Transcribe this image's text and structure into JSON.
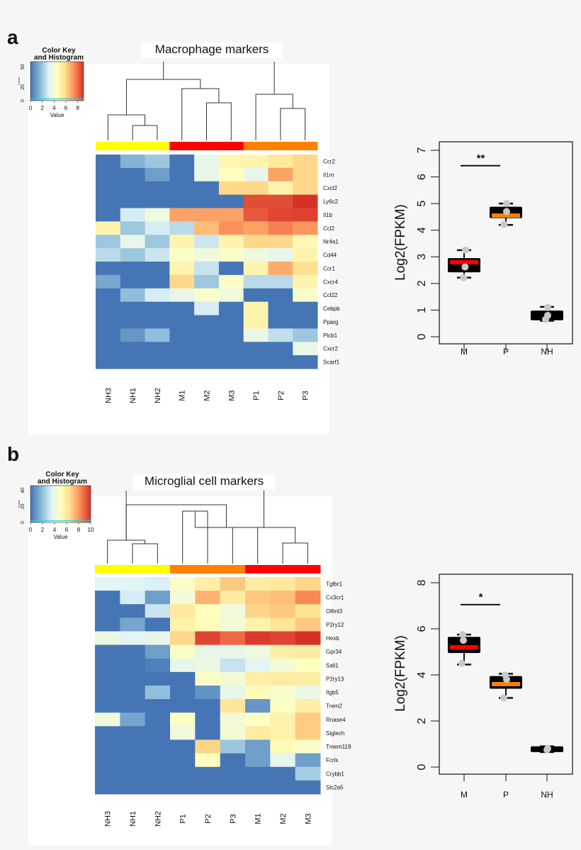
{
  "panels": [
    {
      "label": "a",
      "color_key_title_1": "Color Key",
      "color_key_title_2": "and Histogram",
      "color_key_ylabel": "Count",
      "color_key_xlabel": "Value",
      "color_key_xticks": [
        "0",
        "2",
        "4",
        "6",
        "8"
      ],
      "color_key_yticks": [
        "0",
        "20",
        "50"
      ]
    },
    {
      "label": "b",
      "color_key_title_1": "Color Key",
      "color_key_title_2": "and Histogram",
      "color_key_ylabel": "Count",
      "color_key_xlabel": "Value",
      "color_key_xticks": [
        "0",
        "2",
        "4",
        "6",
        "8",
        "10"
      ],
      "color_key_yticks": [
        "0",
        "20",
        "40"
      ]
    }
  ],
  "colors": {
    "NH": "#ffff00",
    "M": "#ff0000",
    "P": "#ff8000",
    "scale": [
      "#4575b4",
      "#91bfdb",
      "#e0f3f8",
      "#ffffbf",
      "#fee090",
      "#fc8d59",
      "#d73027"
    ]
  },
  "chart_data": [
    {
      "type": "heatmap",
      "title": "Macrophage markers",
      "value_range": [
        0,
        9
      ],
      "columns": [
        "NH3",
        "NH1",
        "NH2",
        "M1",
        "M2",
        "M3",
        "P1",
        "P2",
        "P3"
      ],
      "column_groups": [
        "NH",
        "NH",
        "NH",
        "M",
        "M",
        "M",
        "P",
        "P",
        "P"
      ],
      "rows": [
        "Ccr2",
        "Il1rn",
        "Cxcl2",
        "Ly6c2",
        "Il1b",
        "Ccl2",
        "Nr4a1",
        "Cd44",
        "Ccr1",
        "Cxcr4",
        "Ccl22",
        "Cebpb",
        "Pparg",
        "Plcb1",
        "Cxcr2",
        "Scarf1"
      ],
      "values": [
        [
          0,
          1.5,
          2,
          0,
          3.5,
          5,
          5,
          5.5,
          6
        ],
        [
          0,
          0,
          1,
          0,
          3.5,
          4.5,
          3.5,
          7,
          6
        ],
        [
          0,
          0,
          0,
          0,
          0,
          6,
          6,
          5,
          6
        ],
        [
          0,
          0,
          0,
          0,
          0,
          0,
          8.5,
          8.5,
          9
        ],
        [
          0,
          3,
          3.8,
          7,
          7,
          7,
          8.3,
          8.6,
          8.7
        ],
        [
          5,
          2,
          3,
          2.5,
          6.5,
          7.3,
          7,
          7.6,
          7.2
        ],
        [
          2,
          3.5,
          2,
          5,
          2.8,
          5,
          6,
          6,
          4.8
        ],
        [
          2.5,
          2,
          2.8,
          4.3,
          3.8,
          4.3,
          3.8,
          3.4,
          5
        ],
        [
          0,
          0,
          0,
          5,
          2.7,
          0,
          5,
          6.8,
          5.8
        ],
        [
          1.2,
          0,
          0,
          6,
          2,
          4.3,
          2.5,
          2.5,
          5
        ],
        [
          0,
          1.8,
          3,
          3.5,
          4.3,
          3.8,
          0,
          0,
          4.2
        ],
        [
          0,
          0,
          0,
          0,
          3,
          0,
          5,
          0,
          0
        ],
        [
          0,
          0,
          0,
          0,
          0,
          0,
          5,
          0,
          0
        ],
        [
          0,
          0.8,
          1.8,
          0,
          0,
          0,
          3.6,
          2.6,
          2
        ],
        [
          0,
          0,
          0,
          0,
          0,
          0,
          0,
          0,
          3.6
        ],
        [
          0,
          0,
          0,
          0,
          0,
          0,
          0,
          0,
          0
        ]
      ]
    },
    {
      "type": "box",
      "ylabel": "Log2(FPKM)",
      "ylim": [
        0,
        7
      ],
      "yticks": [
        "0",
        "1",
        "2",
        "3",
        "4",
        "5",
        "6",
        "7"
      ],
      "categories": [
        "M",
        "P",
        "NH"
      ],
      "boxes": [
        {
          "group": "M",
          "whisker_low": 2.22,
          "q1": 2.42,
          "median": 2.8,
          "q3": 2.95,
          "whisker_high": 3.25,
          "points": [
            3.25,
            2.62,
            2.22
          ]
        },
        {
          "group": "P",
          "whisker_low": 4.2,
          "q1": 4.45,
          "median": 4.55,
          "q3": 4.88,
          "whisker_high": 5.0,
          "points": [
            5.0,
            4.7,
            4.22
          ]
        },
        {
          "group": "NH",
          "whisker_low": 0.6,
          "q1": 0.62,
          "median": 0.8,
          "q3": 0.98,
          "whisker_high": 1.12,
          "points": [
            1.1,
            0.8,
            0.65
          ]
        }
      ],
      "significance": {
        "from": "M",
        "to": "P",
        "y": 6.42,
        "label": "**"
      }
    },
    {
      "type": "heatmap",
      "title": "Microglial cell markers",
      "value_range": [
        0,
        10
      ],
      "columns": [
        "NH3",
        "NH1",
        "NH2",
        "P1",
        "P2",
        "P3",
        "M1",
        "M2",
        "M3"
      ],
      "column_groups": [
        "NH",
        "NH",
        "NH",
        "P",
        "P",
        "P",
        "M",
        "M",
        "M"
      ],
      "rows": [
        "Tgfbr1",
        "Cx3cr1",
        "Olfml3",
        "P2ry12",
        "Hexb",
        "Gpr34",
        "Sall1",
        "P2ry13",
        "Itgb5",
        "Trem2",
        "Rnase4",
        "Siglech",
        "Tmem119",
        "Fcrls",
        "Crybb1",
        "Slc2a5"
      ],
      "values": [
        [
          3.6,
          3.6,
          3.4,
          4.8,
          5.8,
          7,
          5.9,
          6.1,
          6.7
        ],
        [
          0,
          3.3,
          1.1,
          4.4,
          7.4,
          5.9,
          7,
          7.2,
          8.3
        ],
        [
          0,
          0,
          3.1,
          6.1,
          5,
          4.2,
          6.7,
          7,
          6.4
        ],
        [
          0,
          1.3,
          0,
          5.6,
          5.2,
          4.4,
          5.6,
          6.3,
          7
        ],
        [
          4.1,
          3.6,
          3.9,
          6.7,
          9.6,
          8.9,
          9.8,
          9.6,
          10
        ],
        [
          0,
          0,
          1.1,
          4.8,
          3.9,
          3.9,
          4.2,
          5.8,
          5.9
        ],
        [
          0,
          0,
          0.3,
          3.9,
          4.1,
          3,
          3.7,
          4.4,
          5
        ],
        [
          0,
          0,
          0,
          0,
          4.8,
          4.4,
          5.8,
          5.9,
          5.8
        ],
        [
          0,
          0,
          2,
          0,
          0.8,
          3.9,
          5.2,
          4.7,
          4
        ],
        [
          0,
          0,
          0,
          0,
          0,
          6.2,
          0.9,
          4.9,
          5.8
        ],
        [
          4.2,
          1.3,
          0,
          4.9,
          0,
          4.4,
          4.9,
          5.6,
          6.9
        ],
        [
          0,
          0,
          0,
          4.2,
          0,
          4.4,
          5.9,
          5.6,
          6.9
        ],
        [
          0,
          0,
          0,
          0,
          6.7,
          2.2,
          1.1,
          5.3,
          4.7
        ],
        [
          0,
          0,
          0,
          0,
          5,
          0,
          1.1,
          3.8,
          1.1
        ],
        [
          0,
          0,
          0,
          0,
          0,
          0,
          0,
          0,
          2.4
        ],
        [
          0,
          0,
          0,
          0,
          0,
          0,
          0,
          0,
          0
        ]
      ]
    },
    {
      "type": "box",
      "ylabel": "Log2(FPKM)",
      "ylim": [
        0,
        8
      ],
      "yticks": [
        "0",
        "2",
        "4",
        "6",
        "8"
      ],
      "categories": [
        "M",
        "P",
        "NH"
      ],
      "boxes": [
        {
          "group": "M",
          "whisker_low": 4.45,
          "q1": 4.95,
          "median": 5.2,
          "q3": 5.65,
          "whisker_high": 5.75,
          "points": [
            5.75,
            5.5,
            4.5
          ]
        },
        {
          "group": "P",
          "whisker_low": 3.0,
          "q1": 3.4,
          "median": 3.6,
          "q3": 3.95,
          "whisker_high": 4.05,
          "points": [
            4.0,
            3.8,
            3.0
          ]
        },
        {
          "group": "NH",
          "whisker_low": 0.65,
          "q1": 0.65,
          "median": 0.75,
          "q3": 0.9,
          "whisker_high": 0.9,
          "points": [
            0.75,
            0.8
          ]
        }
      ],
      "significance": {
        "from": "M",
        "to": "P",
        "y": 7.05,
        "label": "*"
      }
    }
  ]
}
